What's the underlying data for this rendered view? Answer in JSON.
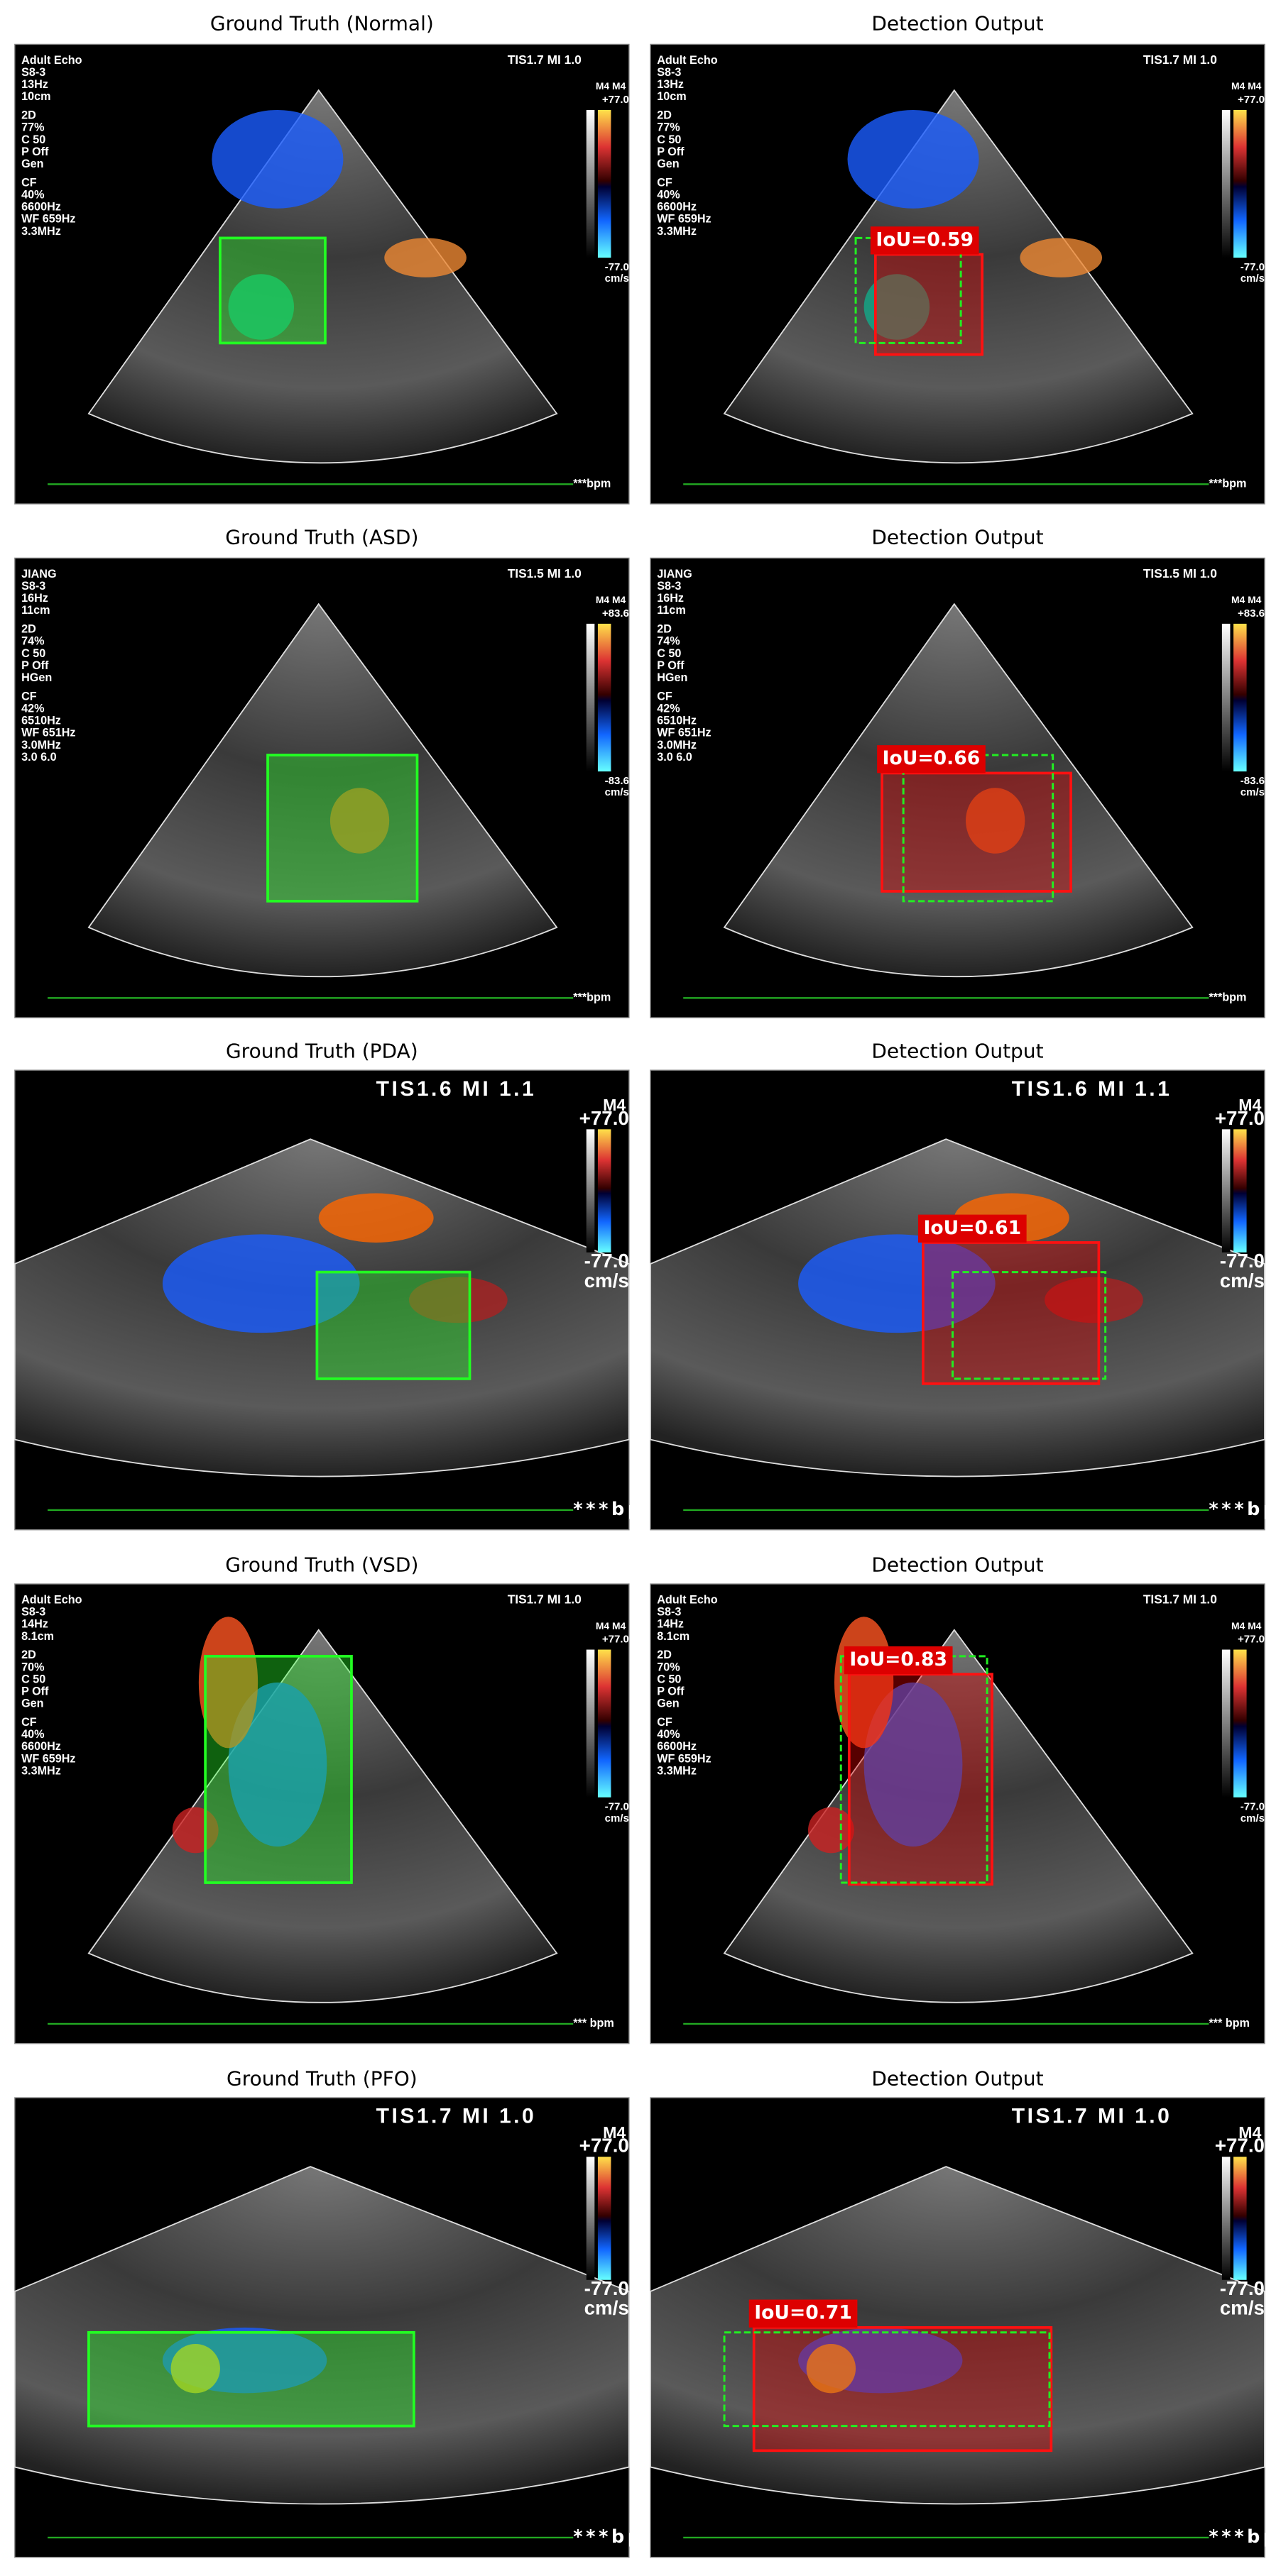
{
  "panels": [
    {
      "gt_title": "Ground Truth (Normal)",
      "det_title": "Detection Output",
      "iou": "IoU=0.59",
      "info": [
        "Adult Echo",
        "S8-3",
        "13Hz",
        "10cm",
        "2D",
        "77%",
        "C 50",
        "P Off",
        "Gen",
        "CF",
        "40%",
        "6600Hz",
        "WF 659Hz",
        "3.3MHz"
      ],
      "tis": "TIS1.7  MI 1.0",
      "scale_head": "M4 M4",
      "scale_top": "+77.0",
      "scale_bottom": "-77.0",
      "scale_unit": "cm/s",
      "bpm": "***bpm"
    },
    {
      "gt_title": "Ground Truth (ASD)",
      "det_title": "Detection Output",
      "iou": "IoU=0.66",
      "info": [
        "JIANG",
        "S8-3",
        "16Hz",
        "11cm",
        "2D",
        "74%",
        "C 50",
        "P Off",
        "HGen",
        "CF",
        "42%",
        "6510Hz",
        "WF 651Hz",
        "3.0MHz",
        "3.0 6.0"
      ],
      "tis": "TIS1.5  MI 1.0",
      "scale_head": "M4 M4",
      "scale_top": "+83.6",
      "scale_bottom": "-83.6",
      "scale_unit": "cm/s",
      "bpm": "***bpm"
    },
    {
      "gt_title": "Ground Truth (PDA)",
      "det_title": "Detection Output",
      "iou": "IoU=0.61",
      "info": [],
      "tis": "TIS1.6   MI 1.1",
      "scale_head": "M4",
      "scale_top": "+77.0",
      "scale_bottom": "-77.0",
      "scale_unit": "cm/s",
      "bpm": "***bpm"
    },
    {
      "gt_title": "Ground Truth (VSD)",
      "det_title": "Detection Output",
      "iou": "IoU=0.83",
      "info": [
        "Adult Echo",
        "S8-3",
        "14Hz",
        "8.1cm",
        "2D",
        "70%",
        "C 50",
        "P Off",
        "Gen",
        "CF",
        "40%",
        "6600Hz",
        "WF 659Hz",
        "3.3MHz"
      ],
      "tis": "TIS1.7    MI 1.0",
      "scale_head": "M4 M4",
      "scale_top": "+77.0",
      "scale_bottom": "-77.0",
      "scale_unit": "cm/s",
      "bpm": "*** bpm"
    },
    {
      "gt_title": "Ground Truth (PFO)",
      "det_title": "Detection Output",
      "iou": "IoU=0.71",
      "info": [],
      "tis": "TIS1.7   MI 1.0",
      "scale_head": "M4",
      "scale_top": "+77.0",
      "scale_bottom": "-77.0",
      "scale_unit": "cm/s",
      "bpm": "***bpm"
    }
  ]
}
